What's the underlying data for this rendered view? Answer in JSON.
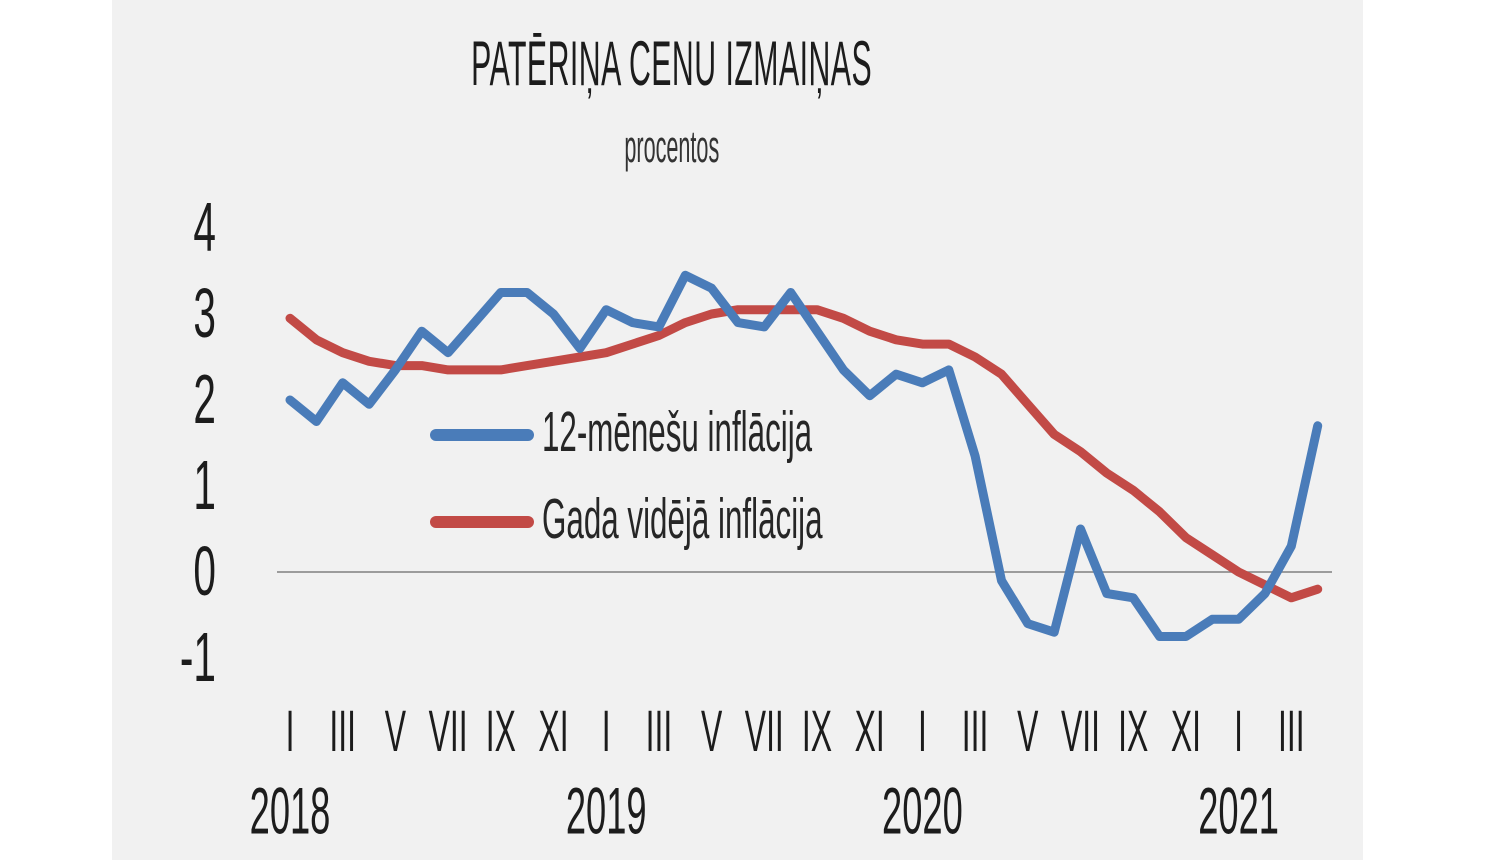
{
  "title": "PATĒRIŅA CENU IZMAIŅAS",
  "subtitle": "procentos",
  "colors": {
    "page_background": "#ffffff",
    "panel_background": "#f1f1f1",
    "zero_line": "#808080",
    "text": "#1c1c1c",
    "series_blue": "#4a7cb9",
    "series_red": "#c24a46"
  },
  "chart_data": {
    "type": "line",
    "x_unit": "month",
    "x_range_start": "2018-01",
    "x_range_end": "2021-04",
    "grid": "zero-line-only",
    "legend_position": "inside-left-middle",
    "y_axis": {
      "ticks": [
        "4",
        "3",
        "2",
        "1",
        "0",
        "-1"
      ],
      "tick_values": [
        4,
        3,
        2,
        1,
        0,
        -1
      ],
      "min": -1,
      "max": 4
    },
    "x_axis": {
      "years": [
        {
          "label": "2018",
          "ticks": [
            "I",
            "III",
            "V",
            "VII",
            "IX",
            "XI"
          ]
        },
        {
          "label": "2019",
          "ticks": [
            "I",
            "III",
            "V",
            "VII",
            "IX",
            "XI"
          ]
        },
        {
          "label": "2020",
          "ticks": [
            "I",
            "III",
            "V",
            "VII",
            "IX",
            "XI"
          ]
        },
        {
          "label": "2021",
          "ticks": [
            "I",
            "III"
          ]
        }
      ]
    },
    "series": [
      {
        "name": "12-mēnešu inflācija",
        "color": "#4a7cb9",
        "values": [
          2.0,
          1.75,
          2.2,
          1.95,
          2.35,
          2.8,
          2.55,
          2.9,
          3.25,
          3.25,
          3.0,
          2.6,
          3.05,
          2.9,
          2.85,
          3.45,
          3.3,
          2.9,
          2.85,
          3.25,
          2.8,
          2.35,
          2.05,
          2.3,
          2.2,
          2.35,
          1.35,
          -0.1,
          -0.6,
          -0.7,
          0.5,
          -0.25,
          -0.3,
          -0.75,
          -0.75,
          -0.55,
          -0.55,
          -0.25,
          0.3,
          1.7
        ]
      },
      {
        "name": "Gada vidējā inflācija",
        "color": "#c24a46",
        "values": [
          2.95,
          2.7,
          2.55,
          2.45,
          2.4,
          2.4,
          2.35,
          2.35,
          2.35,
          2.4,
          2.45,
          2.5,
          2.55,
          2.65,
          2.75,
          2.9,
          3.0,
          3.05,
          3.05,
          3.05,
          3.05,
          2.95,
          2.8,
          2.7,
          2.65,
          2.65,
          2.5,
          2.3,
          1.95,
          1.6,
          1.4,
          1.15,
          0.95,
          0.7,
          0.4,
          0.2,
          0.0,
          -0.15,
          -0.3,
          -0.2
        ]
      }
    ]
  }
}
